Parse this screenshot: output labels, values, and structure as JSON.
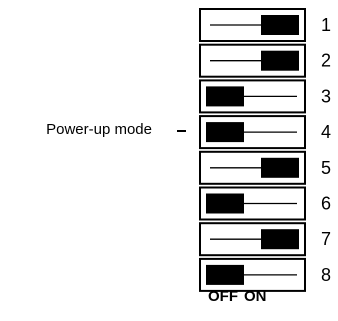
{
  "diagram": {
    "annotation": "Power-up mode",
    "annotated_switch": 4,
    "footer_off": "OFF",
    "footer_on": "ON",
    "switches": [
      {
        "number": "1",
        "state": "ON"
      },
      {
        "number": "2",
        "state": "ON"
      },
      {
        "number": "3",
        "state": "OFF"
      },
      {
        "number": "4",
        "state": "OFF"
      },
      {
        "number": "5",
        "state": "ON"
      },
      {
        "number": "6",
        "state": "OFF"
      },
      {
        "number": "7",
        "state": "ON"
      },
      {
        "number": "8",
        "state": "OFF"
      }
    ],
    "colors": {
      "line": "#000000",
      "knob": "#000000",
      "background": "#ffffff",
      "text": "#000000"
    }
  }
}
